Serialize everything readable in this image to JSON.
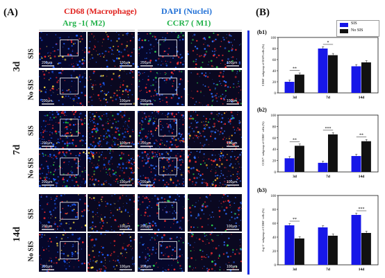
{
  "panelA": {
    "label": "(A)",
    "headers": {
      "cd68": "CD68 (Macrophage)",
      "dapi": "DAPI (Nuclei)",
      "arg1": "Arg -1( M2)",
      "ccr7": "CCR7 ( M1)"
    },
    "rows": [
      {
        "time": "3d",
        "groups": [
          "SIS",
          "No SIS"
        ]
      },
      {
        "time": "7d",
        "groups": [
          "SIS",
          "No SIS"
        ]
      },
      {
        "time": "14d",
        "groups": [
          "SIS",
          "No SIS"
        ]
      }
    ],
    "scale_big": "200μm",
    "scale_small": "100μm"
  },
  "panelB": {
    "label": "(B)",
    "legend": [
      "SIS",
      "No SIS"
    ],
    "colors": {
      "sis": "#1717e8",
      "nosis": "#111111"
    }
  },
  "chart_data": [
    {
      "id": "b1",
      "type": "bar",
      "subtitle": "(b1)",
      "ylabel": "CD68⁺ subgroup of DAPI cells (%)",
      "categories": [
        "3d",
        "7d",
        "14d"
      ],
      "series": [
        {
          "name": "SIS",
          "values": [
            20,
            80,
            48
          ]
        },
        {
          "name": "No SIS",
          "values": [
            33,
            68,
            55
          ]
        }
      ],
      "ylim": [
        0,
        100
      ],
      "yticks": [
        0,
        20,
        40,
        60,
        80,
        100
      ],
      "significance": [
        "**",
        "*",
        ""
      ]
    },
    {
      "id": "b2",
      "type": "bar",
      "subtitle": "(b2)",
      "ylabel": "CCR7⁺ subgroup of CD68⁺ cells (%)",
      "categories": [
        "3d",
        "7d",
        "14d"
      ],
      "series": [
        {
          "name": "SIS",
          "values": [
            24,
            16,
            28
          ]
        },
        {
          "name": "No SIS",
          "values": [
            46,
            66,
            54
          ]
        }
      ],
      "ylim": [
        0,
        100
      ],
      "yticks": [
        0,
        20,
        40,
        60,
        80,
        100
      ],
      "significance": [
        "**",
        "***",
        "**"
      ]
    },
    {
      "id": "b3",
      "type": "bar",
      "subtitle": "(b3)",
      "ylabel": "Arg-1⁺ subgroup of CD68⁺ cells (%)",
      "categories": [
        "3d",
        "7d",
        "14d"
      ],
      "series": [
        {
          "name": "SIS",
          "values": [
            57,
            54,
            72
          ]
        },
        {
          "name": "No SIS",
          "values": [
            38,
            42,
            46
          ]
        }
      ],
      "ylim": [
        0,
        100
      ],
      "yticks": [
        0,
        20,
        40,
        60,
        80,
        100
      ],
      "significance": [
        "**",
        "",
        "***"
      ]
    }
  ]
}
